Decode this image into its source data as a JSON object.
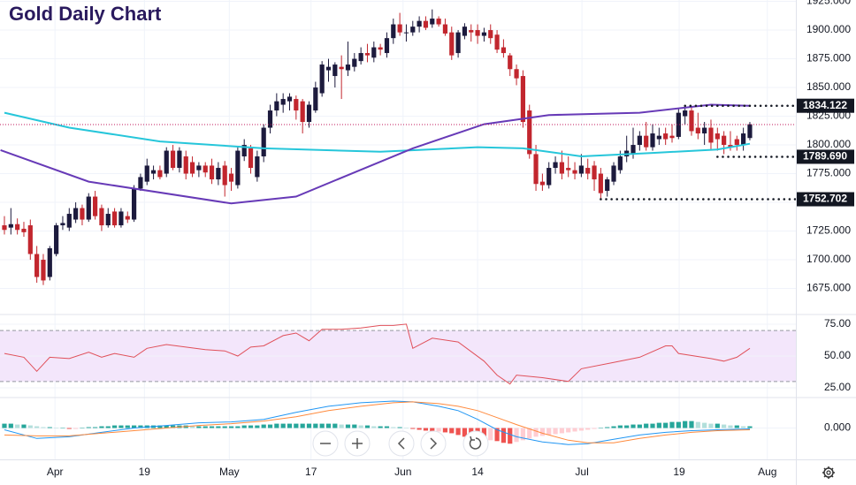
{
  "chart_data": [
    {
      "type": "candlestick",
      "title": "Gold Daily Chart",
      "xlim": [
        -0.68,
        122.1
      ],
      "xticks": [
        {
          "value": 7.8,
          "label": "Apr"
        },
        {
          "value": 21.6,
          "label": "19"
        },
        {
          "value": 34.7,
          "label": "May"
        },
        {
          "value": 47.3,
          "label": "17"
        },
        {
          "value": 61.5,
          "label": "Jun"
        },
        {
          "value": 73,
          "label": "14"
        },
        {
          "value": 89.1,
          "label": "Jul"
        },
        {
          "value": 104.1,
          "label": "19"
        },
        {
          "value": 117.7,
          "label": "Aug"
        }
      ],
      "ylim": [
        1653.1,
        1926.2
      ],
      "yticks": [
        {
          "value": 1925,
          "label": "1925.000"
        },
        {
          "value": 1900,
          "label": "1900.000"
        },
        {
          "value": 1875,
          "label": "1875.000"
        },
        {
          "value": 1850,
          "label": "1850.000"
        },
        {
          "value": 1825,
          "label": "1825.000"
        },
        {
          "value": 1800,
          "label": "1800.000"
        },
        {
          "value": 1775,
          "label": "1775.000"
        },
        {
          "value": 1750,
          "label": "1750.000"
        },
        {
          "value": 1725,
          "label": "1725.000"
        },
        {
          "value": 1700,
          "label": "1700.000"
        },
        {
          "value": 1675,
          "label": "1675.000"
        }
      ],
      "grid": true,
      "up_color": "#1c1a3d",
      "down_color": "#c2262e",
      "candles": {
        "open": [
          1730,
          1728,
          1731,
          1727,
          1730,
          1705,
          1700,
          1685,
          1705,
          1730,
          1728,
          1735,
          1745,
          1735,
          1755,
          1745,
          1730,
          1742,
          1730,
          1738,
          1735,
          1762,
          1768,
          1775,
          1778,
          1775,
          1795,
          1780,
          1790,
          1785,
          1778,
          1782,
          1782,
          1770,
          1782,
          1775,
          1765,
          1790,
          1797,
          1772,
          1790,
          1815,
          1830,
          1835,
          1838,
          1840,
          1838,
          1820,
          1830,
          1845,
          1865,
          1860,
          1868,
          1865,
          1868,
          1873,
          1880,
          1876,
          1885,
          1880,
          1893,
          1905,
          1898,
          1898,
          1903,
          1908,
          1905,
          1910,
          1905,
          1898,
          1880,
          1895,
          1900,
          1900,
          1895,
          1900,
          1896,
          1885,
          1878,
          1866,
          1860,
          1830,
          1792,
          1768,
          1765,
          1780,
          1785,
          1780,
          1778,
          1775,
          1780,
          1782,
          1775,
          1760,
          1768,
          1778,
          1790,
          1792,
          1800,
          1808,
          1798,
          1805,
          1810,
          1808,
          1807,
          1825,
          1830,
          1815,
          1810,
          1815,
          1810,
          1808,
          1800,
          1805,
          1800,
          1806
        ],
        "high": [
          1738,
          1745,
          1736,
          1733,
          1735,
          1712,
          1705,
          1712,
          1732,
          1738,
          1745,
          1750,
          1748,
          1758,
          1760,
          1748,
          1745,
          1745,
          1745,
          1742,
          1765,
          1775,
          1788,
          1782,
          1782,
          1798,
          1800,
          1798,
          1795,
          1790,
          1785,
          1785,
          1788,
          1785,
          1786,
          1780,
          1798,
          1805,
          1800,
          1795,
          1818,
          1835,
          1845,
          1845,
          1845,
          1843,
          1840,
          1838,
          1855,
          1873,
          1875,
          1872,
          1878,
          1890,
          1880,
          1885,
          1888,
          1890,
          1888,
          1898,
          1910,
          1915,
          1905,
          1908,
          1912,
          1912,
          1918,
          1912,
          1910,
          1903,
          1900,
          1906,
          1905,
          1905,
          1902,
          1905,
          1900,
          1892,
          1880,
          1870,
          1865,
          1835,
          1800,
          1775,
          1785,
          1790,
          1795,
          1790,
          1785,
          1792,
          1788,
          1786,
          1780,
          1772,
          1785,
          1795,
          1808,
          1815,
          1812,
          1820,
          1818,
          1815,
          1815,
          1818,
          1832,
          1834.122,
          1833,
          1828,
          1820,
          1822,
          1815,
          1812,
          1812,
          1808,
          1815,
          1820
        ],
        "low": [
          1722,
          1722,
          1722,
          1720,
          1700,
          1680,
          1678,
          1682,
          1703,
          1726,
          1725,
          1732,
          1730,
          1733,
          1735,
          1725,
          1728,
          1728,
          1728,
          1732,
          1733,
          1760,
          1765,
          1770,
          1770,
          1772,
          1778,
          1776,
          1770,
          1772,
          1772,
          1772,
          1766,
          1765,
          1755,
          1760,
          1762,
          1786,
          1775,
          1768,
          1785,
          1810,
          1825,
          1828,
          1830,
          1822,
          1810,
          1815,
          1828,
          1842,
          1855,
          1850,
          1840,
          1860,
          1864,
          1870,
          1872,
          1872,
          1878,
          1876,
          1888,
          1895,
          1890,
          1895,
          1898,
          1900,
          1902,
          1903,
          1895,
          1874,
          1876,
          1892,
          1890,
          1888,
          1890,
          1888,
          1880,
          1876,
          1860,
          1852,
          1815,
          1788,
          1760,
          1760,
          1762,
          1775,
          1770,
          1772,
          1770,
          1772,
          1770,
          1760,
          1752.702,
          1755,
          1765,
          1775,
          1785,
          1788,
          1795,
          1795,
          1795,
          1800,
          1800,
          1802,
          1805,
          1818,
          1808,
          1805,
          1800,
          1795,
          1795,
          1792,
          1795,
          1795,
          1795,
          1804
        ],
        "close": [
          1726,
          1731,
          1726,
          1724,
          1705,
          1685,
          1682,
          1710,
          1730,
          1732,
          1740,
          1745,
          1735,
          1755,
          1738,
          1730,
          1740,
          1730,
          1742,
          1735,
          1762,
          1772,
          1782,
          1778,
          1772,
          1795,
          1780,
          1795,
          1775,
          1775,
          1782,
          1776,
          1770,
          1780,
          1765,
          1768,
          1795,
          1800,
          1780,
          1790,
          1815,
          1830,
          1838,
          1840,
          1842,
          1830,
          1820,
          1835,
          1850,
          1870,
          1868,
          1870,
          1866,
          1870,
          1875,
          1880,
          1878,
          1885,
          1883,
          1893,
          1905,
          1898,
          1898,
          1903,
          1908,
          1902,
          1910,
          1905,
          1897,
          1878,
          1898,
          1903,
          1898,
          1895,
          1898,
          1893,
          1883,
          1880,
          1866,
          1858,
          1820,
          1792,
          1766,
          1765,
          1780,
          1785,
          1775,
          1778,
          1775,
          1782,
          1775,
          1770,
          1758,
          1770,
          1782,
          1790,
          1795,
          1800,
          1808,
          1798,
          1810,
          1808,
          1805,
          1806,
          1828,
          1830,
          1812,
          1810,
          1815,
          1802,
          1805,
          1800,
          1798,
          1800,
          1810,
          1818
        ]
      },
      "series": [
        {
          "color": "#26c6da",
          "x": [
            0,
            10,
            24,
            40,
            58,
            73,
            80,
            89,
            100,
            110,
            115
          ],
          "values": [
            1828,
            1815,
            1803,
            1797,
            1794,
            1798,
            1797,
            1790,
            1793,
            1796,
            1801
          ]
        },
        {
          "color": "#673ab7",
          "x": [
            -0.6,
            13,
            35,
            45,
            54,
            63,
            74,
            84,
            98,
            109,
            115
          ],
          "values": [
            1795.5,
            1768,
            1749,
            1755,
            1776,
            1797,
            1818,
            1826,
            1828,
            1835,
            1834
          ]
        }
      ],
      "price_line": {
        "value": 1817.7,
        "color": "#c2185b"
      },
      "levels": [
        {
          "value": 1834.122,
          "label": "1834.122",
          "from": 105
        },
        {
          "value": 1789.69,
          "label": "1789.690",
          "from": 110
        },
        {
          "value": 1752.702,
          "label": "1752.702",
          "from": 92
        }
      ]
    },
    {
      "type": "line",
      "ylim": [
        17.4,
        81.9
      ],
      "yticks": [
        {
          "value": 75,
          "label": "75.00"
        },
        {
          "value": 50,
          "label": "50.00"
        },
        {
          "value": 25,
          "label": "25.00"
        }
      ],
      "band": [
        30,
        70
      ],
      "band_color": "#f3e6fb",
      "series": [
        {
          "color": "#e0505a",
          "x": [
            0,
            3,
            5,
            7,
            10,
            13,
            15,
            17,
            20,
            22,
            25,
            28,
            31,
            34,
            36,
            38,
            40,
            43,
            45,
            47,
            49,
            52,
            55,
            58,
            60,
            62,
            63,
            66,
            70,
            74,
            76,
            78,
            79,
            83,
            87,
            89,
            94,
            98,
            102,
            103,
            104,
            109,
            111,
            113,
            115
          ],
          "values": [
            52,
            49,
            38,
            49,
            48,
            53,
            49,
            52,
            49,
            56,
            59,
            57,
            55,
            54,
            50,
            57,
            58,
            66,
            68,
            62,
            71,
            71,
            72,
            74,
            74,
            75,
            56,
            64,
            61,
            46,
            35,
            28,
            35,
            33,
            30,
            40,
            45,
            49,
            58,
            58,
            52,
            48,
            46,
            49,
            56
          ]
        }
      ]
    },
    {
      "type": "macd",
      "ylim": [
        -36,
        34
      ],
      "yticks": [
        {
          "value": 0,
          "label": "0.000"
        }
      ],
      "histogram": [
        5,
        5,
        4,
        4,
        3,
        2,
        1,
        1,
        0,
        0,
        -1,
        -1,
        0,
        1,
        1,
        2,
        2,
        3,
        3,
        3,
        3,
        3,
        3,
        3,
        3,
        3,
        3,
        3,
        3,
        2,
        2,
        2,
        2,
        2,
        2,
        2,
        2,
        3,
        3,
        3,
        4,
        4,
        5,
        5,
        5,
        5,
        5,
        5,
        5,
        5,
        5,
        5,
        4,
        4,
        4,
        3,
        3,
        2,
        2,
        2,
        1,
        1,
        0,
        -1,
        -2,
        -3,
        -4,
        -4,
        -5,
        -6,
        -8,
        -10,
        -11,
        -12,
        -14,
        -14,
        -15,
        -17,
        -18,
        -16,
        -14,
        -12,
        -10,
        -9,
        -8,
        -7,
        -6,
        -5,
        -4,
        -3,
        -2,
        -1,
        0,
        1,
        2,
        3,
        3,
        4,
        4,
        5,
        5,
        6,
        6,
        7,
        7,
        8,
        8,
        7,
        6,
        5,
        5,
        4,
        3,
        3,
        2,
        2
      ],
      "histogram_colors": [
        "#26a69a",
        "#b2dfdb",
        "#ffcdd2",
        "#ef5350"
      ],
      "series": [
        {
          "color": "#2196f3",
          "x": [
            0,
            5,
            10,
            15,
            20,
            25,
            30,
            35,
            40,
            45,
            50,
            55,
            60,
            63,
            67,
            70,
            73,
            76,
            79,
            83,
            87,
            90,
            94,
            98,
            102,
            106,
            110,
            115
          ],
          "values": [
            -2,
            -12,
            -10,
            -5,
            0,
            3,
            6,
            7,
            10,
            18,
            25,
            29,
            31,
            30,
            25,
            20,
            10,
            -2,
            -10,
            -16,
            -19,
            -18,
            -13,
            -8,
            -5,
            -3,
            -2,
            -1
          ]
        },
        {
          "color": "#ff8a3d",
          "x": [
            0,
            5,
            10,
            15,
            20,
            25,
            30,
            35,
            40,
            45,
            50,
            55,
            60,
            63,
            67,
            70,
            73,
            76,
            79,
            83,
            87,
            90,
            94,
            98,
            102,
            106,
            110,
            115
          ],
          "values": [
            -8,
            -9,
            -9,
            -6,
            -3,
            0,
            3,
            5,
            8,
            13,
            20,
            25,
            29,
            30,
            28,
            25,
            20,
            12,
            4,
            -6,
            -14,
            -17,
            -17,
            -12,
            -8,
            -5,
            -3,
            -2
          ]
        }
      ]
    }
  ]
}
